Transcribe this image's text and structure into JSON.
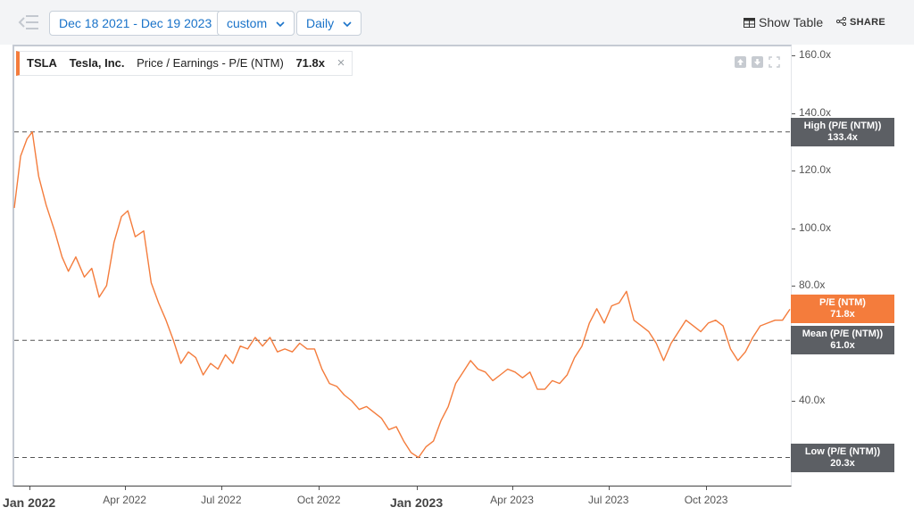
{
  "toolbar": {
    "date_range": "Dec 18 2021 - Dec 19 2023",
    "range_type": "custom",
    "frequency": "Daily",
    "show_table": "Show Table",
    "share": "SHARE"
  },
  "legend": {
    "ticker": "TSLA",
    "company": "Tesla, Inc.",
    "metric": "Price / Earnings - P/E (NTM)",
    "value": "71.8x"
  },
  "colors": {
    "series": "#f47c3c",
    "ref_tag": "#5c5f64",
    "accent": "#1a73c9"
  },
  "chart_data": {
    "type": "line",
    "title": "",
    "xlabel": "",
    "ylabel": "",
    "ylim": [
      11,
      162
    ],
    "x_range": [
      "2021-12-18",
      "2023-12-19"
    ],
    "y_ticks": [
      "40.0x",
      "60.0x",
      "80.0x",
      "100.0x",
      "120.0x",
      "140.0x",
      "160.0x"
    ],
    "y_tick_values": [
      40,
      60,
      80,
      100,
      120,
      140,
      160
    ],
    "x_ticks": [
      {
        "date": "2022-01-01",
        "label": "Jan 2022",
        "major": true
      },
      {
        "date": "2022-04-01",
        "label": "Apr 2022",
        "major": false
      },
      {
        "date": "2022-07-01",
        "label": "Jul 2022",
        "major": false
      },
      {
        "date": "2022-10-01",
        "label": "Oct 2022",
        "major": false
      },
      {
        "date": "2023-01-01",
        "label": "Jan 2023",
        "major": true
      },
      {
        "date": "2023-04-01",
        "label": "Apr 2023",
        "major": false
      },
      {
        "date": "2023-07-01",
        "label": "Jul 2023",
        "major": false
      },
      {
        "date": "2023-10-01",
        "label": "Oct 2023",
        "major": false
      }
    ],
    "reference_lines": [
      {
        "name": "High (P/E (NTM))",
        "value": 133.4,
        "label": "133.4x"
      },
      {
        "name": "Mean (P/E (NTM))",
        "value": 61.0,
        "label": "61.0x"
      },
      {
        "name": "Low (P/E (NTM))",
        "value": 20.3,
        "label": "20.3x"
      }
    ],
    "current": {
      "name": "P/E (NTM)",
      "value": 71.8,
      "label": "71.8x"
    },
    "series": [
      {
        "name": "P/E (NTM)",
        "points": [
          [
            "2021-12-18",
            107
          ],
          [
            "2021-12-24",
            125
          ],
          [
            "2021-12-30",
            131
          ],
          [
            "2022-01-04",
            133.4
          ],
          [
            "2022-01-10",
            118
          ],
          [
            "2022-01-17",
            108
          ],
          [
            "2022-01-25",
            99
          ],
          [
            "2022-02-01",
            90
          ],
          [
            "2022-02-07",
            85
          ],
          [
            "2022-02-14",
            90
          ],
          [
            "2022-02-22",
            83
          ],
          [
            "2022-03-01",
            86
          ],
          [
            "2022-03-08",
            76
          ],
          [
            "2022-03-15",
            80
          ],
          [
            "2022-03-22",
            95
          ],
          [
            "2022-03-29",
            104
          ],
          [
            "2022-04-04",
            106
          ],
          [
            "2022-04-11",
            97
          ],
          [
            "2022-04-19",
            99
          ],
          [
            "2022-04-26",
            81
          ],
          [
            "2022-05-03",
            74
          ],
          [
            "2022-05-10",
            68
          ],
          [
            "2022-05-17",
            61
          ],
          [
            "2022-05-24",
            53
          ],
          [
            "2022-05-31",
            57
          ],
          [
            "2022-06-07",
            55
          ],
          [
            "2022-06-14",
            49
          ],
          [
            "2022-06-21",
            53
          ],
          [
            "2022-06-28",
            51
          ],
          [
            "2022-07-05",
            56
          ],
          [
            "2022-07-12",
            53
          ],
          [
            "2022-07-19",
            59
          ],
          [
            "2022-07-26",
            58
          ],
          [
            "2022-08-02",
            62
          ],
          [
            "2022-08-09",
            59
          ],
          [
            "2022-08-16",
            62
          ],
          [
            "2022-08-23",
            57
          ],
          [
            "2022-08-30",
            58
          ],
          [
            "2022-09-06",
            57
          ],
          [
            "2022-09-13",
            60
          ],
          [
            "2022-09-20",
            58
          ],
          [
            "2022-09-27",
            58
          ],
          [
            "2022-10-04",
            51
          ],
          [
            "2022-10-11",
            46
          ],
          [
            "2022-10-18",
            45
          ],
          [
            "2022-10-25",
            42
          ],
          [
            "2022-11-01",
            40
          ],
          [
            "2022-11-08",
            37
          ],
          [
            "2022-11-15",
            38
          ],
          [
            "2022-11-22",
            36
          ],
          [
            "2022-11-29",
            34
          ],
          [
            "2022-12-06",
            30
          ],
          [
            "2022-12-13",
            31
          ],
          [
            "2022-12-20",
            26
          ],
          [
            "2022-12-27",
            22
          ],
          [
            "2023-01-03",
            20.3
          ],
          [
            "2023-01-10",
            24
          ],
          [
            "2023-01-17",
            26
          ],
          [
            "2023-01-24",
            33
          ],
          [
            "2023-01-31",
            38
          ],
          [
            "2023-02-07",
            46
          ],
          [
            "2023-02-14",
            50
          ],
          [
            "2023-02-21",
            54
          ],
          [
            "2023-02-28",
            51
          ],
          [
            "2023-03-07",
            50
          ],
          [
            "2023-03-14",
            47
          ],
          [
            "2023-03-21",
            49
          ],
          [
            "2023-03-28",
            51
          ],
          [
            "2023-04-04",
            50
          ],
          [
            "2023-04-11",
            48
          ],
          [
            "2023-04-18",
            50
          ],
          [
            "2023-04-25",
            44
          ],
          [
            "2023-05-02",
            44
          ],
          [
            "2023-05-09",
            47
          ],
          [
            "2023-05-16",
            46
          ],
          [
            "2023-05-23",
            49
          ],
          [
            "2023-05-30",
            55
          ],
          [
            "2023-06-06",
            59
          ],
          [
            "2023-06-13",
            67
          ],
          [
            "2023-06-20",
            72
          ],
          [
            "2023-06-27",
            67
          ],
          [
            "2023-07-04",
            73
          ],
          [
            "2023-07-11",
            74
          ],
          [
            "2023-07-18",
            78
          ],
          [
            "2023-07-25",
            68
          ],
          [
            "2023-08-01",
            66
          ],
          [
            "2023-08-08",
            64
          ],
          [
            "2023-08-15",
            60
          ],
          [
            "2023-08-22",
            54
          ],
          [
            "2023-08-29",
            60
          ],
          [
            "2023-09-05",
            64
          ],
          [
            "2023-09-12",
            68
          ],
          [
            "2023-09-19",
            66
          ],
          [
            "2023-09-26",
            64
          ],
          [
            "2023-10-03",
            67
          ],
          [
            "2023-10-10",
            68
          ],
          [
            "2023-10-17",
            66
          ],
          [
            "2023-10-24",
            58
          ],
          [
            "2023-10-31",
            54
          ],
          [
            "2023-11-07",
            57
          ],
          [
            "2023-11-14",
            62
          ],
          [
            "2023-11-21",
            66
          ],
          [
            "2023-11-28",
            67
          ],
          [
            "2023-12-05",
            68
          ],
          [
            "2023-12-12",
            68
          ],
          [
            "2023-12-19",
            71.8
          ]
        ]
      }
    ]
  }
}
